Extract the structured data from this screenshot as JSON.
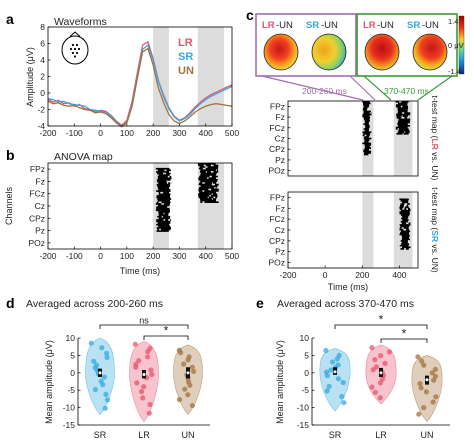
{
  "colors": {
    "LR": "#e8546c",
    "SR": "#35a8e0",
    "UN": "#a3723b",
    "shade": "#dcdcdc",
    "left_box": "#a070b0",
    "right_box": "#3a9a3a",
    "brace": "#000000"
  },
  "panels": {
    "a": {
      "letter": "a",
      "title": "Waveforms",
      "legend": [
        "LR",
        "SR",
        "UN"
      ]
    },
    "b": {
      "letter": "b",
      "title": "ANOVA map"
    },
    "c": {
      "letter": "c",
      "topo_left": {
        "label_a": "LR",
        "label_b": "SR",
        "suffix": "-UN",
        "range": "200-260 ms"
      },
      "topo_right": {
        "label_a": "LR",
        "label_b": "SR",
        "suffix": "-UN",
        "range": "370-470 ms"
      },
      "colorbar_ticks": [
        "1.4",
        "0 μV",
        "-1.4"
      ],
      "map1": {
        "pre": "t-test map (",
        "hl": "LR",
        "post": " vs. UN)"
      },
      "map2": {
        "pre": "t-test map (",
        "hl": "SR",
        "post": " vs. UN)"
      }
    },
    "d": {
      "letter": "d",
      "title": "Averaged across 200-260 ms",
      "sig": [
        "ns",
        "*"
      ]
    },
    "e": {
      "letter": "e",
      "title": "Averaged across 370-470 ms",
      "sig": [
        "*",
        "*"
      ]
    }
  },
  "chart_data": [
    {
      "id": "a",
      "type": "line",
      "title": "Waveforms",
      "xlabel": "",
      "ylabel": "Amplitude (μV)",
      "xlim": [
        -200,
        500
      ],
      "ylim": [
        -4,
        8
      ],
      "xticks": [
        -200,
        -100,
        0,
        100,
        200,
        300,
        400,
        500
      ],
      "yticks": [
        -4,
        -2,
        0,
        2,
        4,
        6,
        8
      ],
      "shaded_windows": [
        [
          200,
          260
        ],
        [
          370,
          470
        ]
      ],
      "x": [
        -200,
        -180,
        -160,
        -140,
        -120,
        -100,
        -80,
        -60,
        -40,
        -20,
        0,
        20,
        40,
        60,
        80,
        100,
        120,
        140,
        160,
        180,
        200,
        220,
        240,
        260,
        280,
        300,
        320,
        340,
        360,
        380,
        400,
        420,
        440,
        460,
        480,
        500
      ],
      "series": [
        {
          "name": "LR",
          "values": [
            -0.8,
            -1.1,
            -0.9,
            -1.3,
            -1.2,
            -1.6,
            -1.4,
            -1.9,
            -2.0,
            -2.3,
            -2.1,
            -2.2,
            -2.7,
            -3.4,
            -3.9,
            -3.3,
            -1.0,
            2.5,
            5.8,
            6.2,
            4.2,
            1.5,
            -0.3,
            -1.8,
            -2.8,
            -3.3,
            -3.0,
            -2.4,
            -1.7,
            -1.1,
            -0.6,
            -0.2,
            0.1,
            0.4,
            0.7,
            1.0
          ]
        },
        {
          "name": "SR",
          "values": [
            -0.7,
            -0.8,
            -1.1,
            -1.0,
            -1.3,
            -1.4,
            -1.5,
            -1.6,
            -2.0,
            -2.1,
            -2.2,
            -2.3,
            -2.8,
            -3.5,
            -4.0,
            -3.5,
            -1.4,
            2.0,
            5.3,
            5.8,
            4.0,
            1.4,
            -0.5,
            -1.9,
            -2.9,
            -3.4,
            -3.1,
            -2.6,
            -1.9,
            -1.3,
            -0.8,
            -0.4,
            -0.1,
            0.2,
            0.5,
            0.8
          ]
        },
        {
          "name": "UN",
          "values": [
            -1.0,
            -1.3,
            -1.2,
            -1.5,
            -1.6,
            -1.5,
            -1.8,
            -2.0,
            -2.1,
            -2.4,
            -2.3,
            -2.5,
            -3.0,
            -3.6,
            -4.1,
            -3.6,
            -1.6,
            1.8,
            5.0,
            5.4,
            3.4,
            0.6,
            -1.2,
            -2.6,
            -3.4,
            -3.7,
            -3.4,
            -2.9,
            -2.3,
            -1.9,
            -1.6,
            -1.4,
            -1.3,
            -1.4,
            -1.5,
            -1.6
          ]
        }
      ]
    },
    {
      "id": "b",
      "type": "heatmap",
      "title": "ANOVA map",
      "xlabel": "Time (ms)",
      "ylabel": "Channels",
      "xlim": [
        -200,
        500
      ],
      "xticks": [
        -200,
        -100,
        0,
        100,
        200,
        300,
        400,
        500
      ],
      "channels": [
        "FPz",
        "Fz",
        "FCz",
        "Cz",
        "CPz",
        "Pz",
        "POz"
      ],
      "shaded_windows": [
        [
          200,
          260
        ],
        [
          370,
          470
        ]
      ],
      "significant_clusters": [
        {
          "t": [
            210,
            270
          ],
          "rows": [
            0.4,
            5.6
          ]
        },
        {
          "t": [
            370,
            450
          ],
          "rows": [
            0.0,
            3.2
          ]
        }
      ]
    },
    {
      "id": "c1",
      "type": "heatmap",
      "title": "",
      "xlabel": "",
      "ylabel": "",
      "xlim": [
        -200,
        500
      ],
      "channels": [
        "FPz",
        "Fz",
        "FCz",
        "Cz",
        "CPz",
        "Pz",
        "POz"
      ],
      "shaded_windows": [
        [
          200,
          260
        ],
        [
          370,
          470
        ]
      ],
      "significant_clusters": [
        {
          "t": [
            200,
            250
          ],
          "rows": [
            0.0,
            5.0
          ]
        },
        {
          "t": [
            380,
            460
          ],
          "rows": [
            0.0,
            3.0
          ]
        }
      ]
    },
    {
      "id": "c2",
      "type": "heatmap",
      "title": "",
      "xlabel": "Time (ms)",
      "ylabel": "",
      "xlim": [
        -200,
        500
      ],
      "xticks": [
        -200,
        0,
        200,
        400
      ],
      "channels": [
        "FPz",
        "Fz",
        "FCz",
        "Cz",
        "CPz",
        "Pz",
        "POz"
      ],
      "shaded_windows": [
        [
          200,
          260
        ],
        [
          370,
          470
        ]
      ],
      "significant_clusters": [
        {
          "t": [
            400,
            460
          ],
          "rows": [
            0.6,
            5.2
          ]
        }
      ]
    },
    {
      "id": "d",
      "type": "scatter",
      "title": "Averaged across 200-260 ms",
      "xlabel": "",
      "ylabel": "Mean amplitude (μV)",
      "categories": [
        "SR",
        "LR",
        "UN"
      ],
      "ylim": [
        -15,
        10
      ],
      "yticks": [
        -15,
        -10,
        -5,
        0,
        5,
        10
      ],
      "series": [
        {
          "category": "SR",
          "median": 0.0,
          "q1": -1.2,
          "q3": 1.2,
          "violin": [
            -12,
            10
          ],
          "points": [
            8.5,
            7.2,
            5.6,
            4.4,
            3.3,
            2.2,
            1.4,
            0.6,
            -0.3,
            -1.2,
            -2.4,
            -3.4,
            -4.8,
            -6.2,
            -7.8,
            -10.2
          ]
        },
        {
          "category": "LR",
          "median": -0.5,
          "q1": -1.6,
          "q3": 0.8,
          "violin": [
            -14,
            9
          ],
          "points": [
            8.2,
            7.0,
            6.1,
            4.6,
            3.5,
            2.4,
            1.6,
            0.8,
            -0.5,
            -1.4,
            -2.9,
            -4.0,
            -5.4,
            -7.2,
            -9.1,
            -11.6
          ]
        },
        {
          "category": "UN",
          "median": 0.0,
          "q1": -1.6,
          "q3": 1.6,
          "violin": [
            -12,
            8
          ],
          "points": [
            6.5,
            5.8,
            4.6,
            3.7,
            2.5,
            1.6,
            0.4,
            -0.6,
            -1.5,
            -2.6,
            -3.6,
            -4.7,
            -6.3,
            -7.7,
            -9.4
          ]
        }
      ]
    },
    {
      "id": "e",
      "type": "scatter",
      "title": "Averaged across 370-470 ms",
      "xlabel": "",
      "ylabel": "Mean amplitude (μV)",
      "categories": [
        "SR",
        "LR",
        "UN"
      ],
      "ylim": [
        -15,
        10
      ],
      "yticks": [
        -15,
        -10,
        -5,
        0,
        5,
        10
      ],
      "series": [
        {
          "category": "SR",
          "median": 0.3,
          "q1": -0.6,
          "q3": 1.6,
          "violin": [
            -11,
            7
          ],
          "points": [
            6.4,
            5.0,
            4.0,
            3.1,
            2.3,
            1.5,
            0.8,
            0.2,
            -0.8,
            -1.7,
            -2.8,
            -3.9,
            -5.2,
            -6.8,
            -8.6
          ]
        },
        {
          "category": "LR",
          "median": 0.0,
          "q1": -1.2,
          "q3": 1.4,
          "violin": [
            -9,
            8
          ],
          "points": [
            7.2,
            6.0,
            4.9,
            3.8,
            2.7,
            1.7,
            0.9,
            0.1,
            -0.8,
            -1.8,
            -2.9,
            -4.1,
            -5.6,
            -7.2
          ]
        },
        {
          "category": "UN",
          "median": -2.0,
          "q1": -3.4,
          "q3": -0.8,
          "violin": [
            -14,
            5
          ],
          "points": [
            4.6,
            3.4,
            2.2,
            1.0,
            0.0,
            -1.0,
            -2.1,
            -3.1,
            -4.3,
            -5.5,
            -6.9,
            -8.4,
            -10.0,
            -11.9
          ]
        }
      ]
    }
  ]
}
